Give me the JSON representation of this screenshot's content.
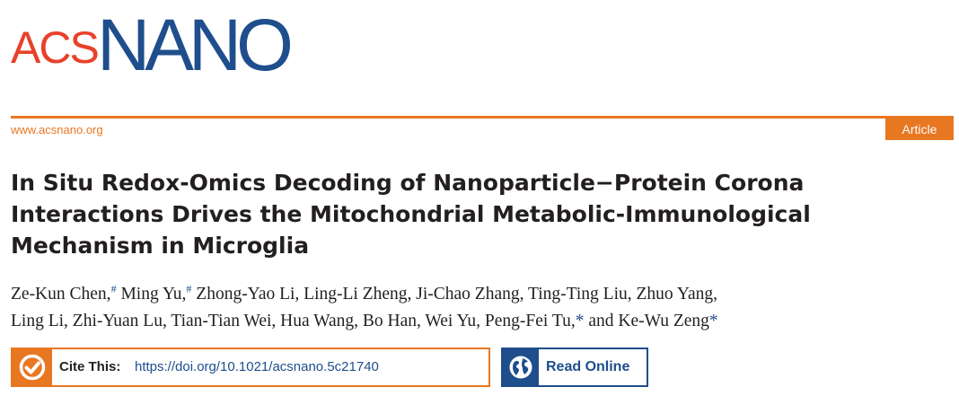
{
  "header": {
    "logo_part1": "ACS",
    "logo_part2": "NANO",
    "website": "www.acsnano.org",
    "article_type": "Article"
  },
  "colors": {
    "accent_orange": "#e87722",
    "brand_blue": "#1f4e8c",
    "logo_red": "#e8412b"
  },
  "title_lines": [
    "In Situ Redox-Omics Decoding of Nanoparticle−Protein Corona",
    "Interactions Drives the Mitochondrial Metabolic-Immunological",
    "Mechanism in Microglia"
  ],
  "authors": {
    "a1": "Ze-Kun Chen,",
    "a1_mark": "#",
    "a2": " Ming Yu,",
    "a2_mark": "#",
    "rest_line1": " Zhong-Yao Li, Ling-Li Zheng, Ji-Chao Zhang, Ting-Ting Liu, Zhuo Yang,",
    "rest_line2": "Ling Li, Zhi-Yuan Lu, Tian-Tian Wei, Hua Wang, Bo Han, Wei Yu, Peng-Fei Tu,",
    "star1": "*",
    "conj": " and Ke-Wu Zeng",
    "star2": "*"
  },
  "cite": {
    "label": "Cite This:",
    "doi": "https://doi.org/10.1021/acsnano.5c21740",
    "icon": "checkmark-circle-icon"
  },
  "read": {
    "label": "Read Online",
    "icon": "globe-icon"
  }
}
